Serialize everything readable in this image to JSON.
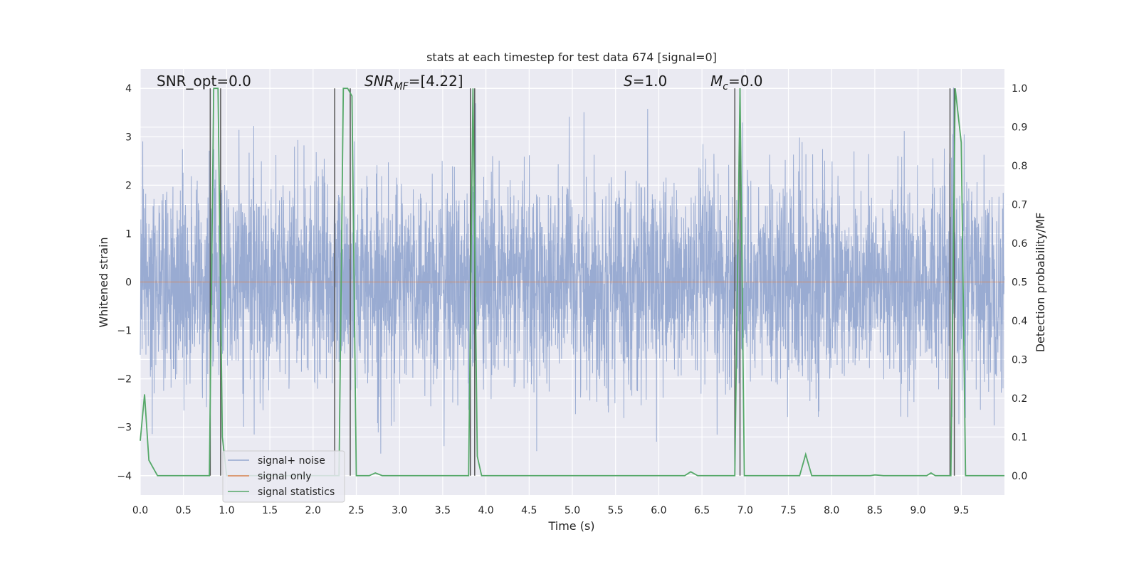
{
  "chart_data": {
    "type": "line",
    "title": "stats at each timestep for test data 674 [signal=0]",
    "xlabel": "Time (s)",
    "ylabel_left": "Whitened strain",
    "ylabel_right": "Detection probability/MF",
    "xlim": [
      0.0,
      10.0
    ],
    "ylim_left": [
      -4.4,
      4.4
    ],
    "ylim_right": [
      -0.05,
      1.05
    ],
    "xticks": [
      "0.0",
      "0.5",
      "1.0",
      "1.5",
      "2.0",
      "2.5",
      "3.0",
      "3.5",
      "4.0",
      "4.5",
      "5.0",
      "5.5",
      "6.0",
      "6.5",
      "7.0",
      "7.5",
      "8.0",
      "8.5",
      "9.0",
      "9.5"
    ],
    "yticks_left": [
      "4",
      "3",
      "2",
      "1",
      "0",
      "−1",
      "−2",
      "−3",
      "−4"
    ],
    "yticks_right": [
      "1.0",
      "0.9",
      "0.8",
      "0.7",
      "0.6",
      "0.5",
      "0.4",
      "0.3",
      "0.2",
      "0.1",
      "0.0"
    ],
    "grid": true,
    "legend_position": "lower-left",
    "annotations": {
      "snr_opt": "SNR_opt=0.0",
      "snr_mf_main": "SNR",
      "snr_mf_sub": "MF",
      "snr_mf_value": "=[4.22]",
      "s_main": "S",
      "s_value": "=1.0",
      "mc_main": "M",
      "mc_sub": "c",
      "mc_value": "=0.0"
    },
    "series": [
      {
        "name": "signal+ noise",
        "axis": "left",
        "color": "#95a8d0",
        "description_points": "dense Gaussian noise, amplitude roughly within -2 to 2 with spikes to ±4"
      },
      {
        "name": "signal only",
        "axis": "left",
        "color": "#dd8452",
        "values": "zero"
      },
      {
        "name": "signal statistics",
        "axis": "right",
        "color": "#55a868",
        "x": [
          0.0,
          0.05,
          0.1,
          0.15,
          0.2,
          0.25,
          0.3,
          0.8,
          0.85,
          0.9,
          0.95,
          1.0,
          1.5,
          2.0,
          2.25,
          2.3,
          2.35,
          2.4,
          2.45,
          2.5,
          2.55,
          2.65,
          2.72,
          2.8,
          3.0,
          3.5,
          3.8,
          3.85,
          3.9,
          3.95,
          4.0,
          5.0,
          6.0,
          6.3,
          6.37,
          6.45,
          6.5,
          6.88,
          6.94,
          6.99,
          7.05,
          7.5,
          7.63,
          7.7,
          7.77,
          8.0,
          8.45,
          8.5,
          8.6,
          9.0,
          9.1,
          9.15,
          9.2,
          9.38,
          9.43,
          9.5,
          9.55,
          9.6,
          10.0
        ],
        "values": [
          0.09,
          0.21,
          0.04,
          0.02,
          0.0,
          0.0,
          0.0,
          0.0,
          1.0,
          1.0,
          0.1,
          0.0,
          0.0,
          0.0,
          0.0,
          0.0,
          1.0,
          1.0,
          0.98,
          0.0,
          0.0,
          0.0,
          0.007,
          0.0,
          0.0,
          0.0,
          0.0,
          1.0,
          0.05,
          0.0,
          0.0,
          0.0,
          0.0,
          0.0,
          0.01,
          0.0,
          0.0,
          0.0,
          1.0,
          0.0,
          0.0,
          0.0,
          0.0,
          0.055,
          0.0,
          0.0,
          0.0,
          0.002,
          0.0,
          0.0,
          0.0,
          0.007,
          0.0,
          0.0,
          1.0,
          0.86,
          0.0,
          0.0,
          0.0
        ]
      }
    ],
    "vertical_lines_x": [
      0.81,
      0.93,
      2.25,
      2.43,
      3.82,
      3.87,
      6.88,
      6.94,
      9.37,
      9.42
    ],
    "vertical_line_color": "#555555"
  }
}
